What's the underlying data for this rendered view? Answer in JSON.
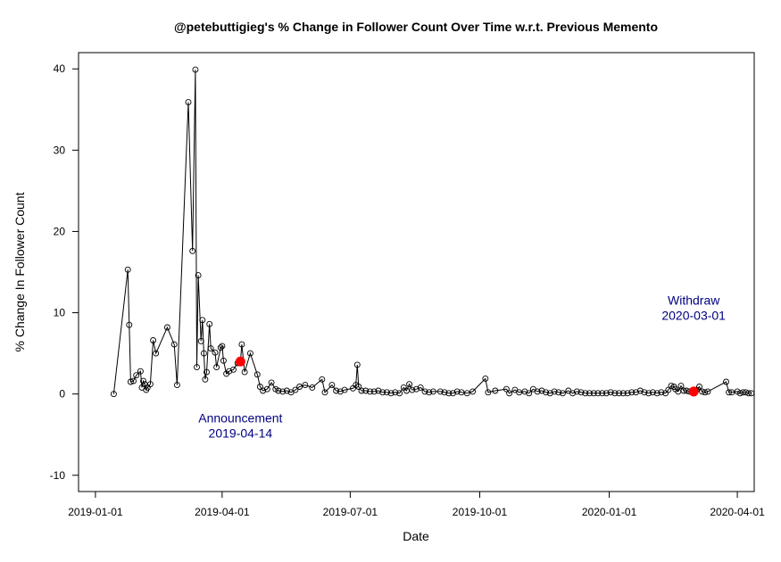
{
  "chart_data": {
    "type": "line",
    "title": "@petebuttigieg's % Change in Follower Count Over Time w.r.t. Previous Memento",
    "xlabel": "Date",
    "ylabel": "% Change In Follower Count",
    "ylim": [
      -12,
      42
    ],
    "xlim": [
      "2018-12-20",
      "2020-04-13"
    ],
    "x_ticks": [
      "2019-01-01",
      "2019-04-01",
      "2019-07-01",
      "2019-10-01",
      "2020-01-01",
      "2020-04-01"
    ],
    "y_ticks": [
      -10,
      0,
      10,
      20,
      30,
      40
    ],
    "grid": false,
    "line_color": "#000000",
    "highlight_color": "#ff0000",
    "annotation_color": "#000080",
    "series": [
      {
        "points": [
          [
            "2019-01-14",
            0
          ],
          [
            "2019-01-24",
            15.3
          ],
          [
            "2019-01-25",
            8.5
          ],
          [
            "2019-01-26",
            1.5
          ],
          [
            "2019-01-28",
            1.6
          ],
          [
            "2019-01-30",
            2.3
          ],
          [
            "2019-02-02",
            2.8
          ],
          [
            "2019-02-03",
            0.8
          ],
          [
            "2019-02-04",
            1.6
          ],
          [
            "2019-02-05",
            1.2
          ],
          [
            "2019-02-06",
            0.5
          ],
          [
            "2019-02-07",
            0.8
          ],
          [
            "2019-02-09",
            1.2
          ],
          [
            "2019-02-11",
            6.6
          ],
          [
            "2019-02-13",
            5.0
          ],
          [
            "2019-02-21",
            8.2
          ],
          [
            "2019-02-26",
            6.1
          ],
          [
            "2019-02-28",
            1.1
          ],
          [
            "2019-03-08",
            35.9
          ],
          [
            "2019-03-11",
            17.6
          ],
          [
            "2019-03-13",
            39.9
          ],
          [
            "2019-03-14",
            3.3
          ],
          [
            "2019-03-15",
            14.6
          ],
          [
            "2019-03-17",
            6.5
          ],
          [
            "2019-03-18",
            9.1
          ],
          [
            "2019-03-19",
            5.0
          ],
          [
            "2019-03-20",
            1.8
          ],
          [
            "2019-03-21",
            2.7
          ],
          [
            "2019-03-23",
            8.6
          ],
          [
            "2019-03-24",
            5.6
          ],
          [
            "2019-03-27",
            5.1
          ],
          [
            "2019-03-28",
            3.3
          ],
          [
            "2019-03-31",
            5.7
          ],
          [
            "2019-04-01",
            5.9
          ],
          [
            "2019-04-02",
            4.1
          ],
          [
            "2019-04-04",
            2.5
          ],
          [
            "2019-04-06",
            2.8
          ],
          [
            "2019-04-09",
            3.0
          ],
          [
            "2019-04-12",
            3.8
          ],
          [
            "2019-04-14",
            4.0
          ],
          [
            "2019-04-15",
            6.1
          ],
          [
            "2019-04-17",
            2.7
          ],
          [
            "2019-04-21",
            5.0
          ],
          [
            "2019-04-26",
            2.4
          ],
          [
            "2019-04-28",
            0.9
          ],
          [
            "2019-04-30",
            0.4
          ],
          [
            "2019-05-03",
            0.6
          ],
          [
            "2019-05-06",
            1.4
          ],
          [
            "2019-05-09",
            0.6
          ],
          [
            "2019-05-11",
            0.4
          ],
          [
            "2019-05-14",
            0.3
          ],
          [
            "2019-05-17",
            0.4
          ],
          [
            "2019-05-20",
            0.2
          ],
          [
            "2019-05-23",
            0.5
          ],
          [
            "2019-05-26",
            0.9
          ],
          [
            "2019-05-30",
            1.1
          ],
          [
            "2019-06-04",
            0.8
          ],
          [
            "2019-06-11",
            1.8
          ],
          [
            "2019-06-13",
            0.2
          ],
          [
            "2019-06-18",
            1.1
          ],
          [
            "2019-06-21",
            0.4
          ],
          [
            "2019-06-24",
            0.3
          ],
          [
            "2019-06-27",
            0.5
          ],
          [
            "2019-07-03",
            0.7
          ],
          [
            "2019-07-05",
            1.1
          ],
          [
            "2019-07-06",
            3.6
          ],
          [
            "2019-07-07",
            0.9
          ],
          [
            "2019-07-09",
            0.4
          ],
          [
            "2019-07-12",
            0.4
          ],
          [
            "2019-07-15",
            0.3
          ],
          [
            "2019-07-18",
            0.3
          ],
          [
            "2019-07-21",
            0.4
          ],
          [
            "2019-07-24",
            0.2
          ],
          [
            "2019-07-27",
            0.2
          ],
          [
            "2019-07-30",
            0.1
          ],
          [
            "2019-08-02",
            0.2
          ],
          [
            "2019-08-05",
            0.1
          ],
          [
            "2019-08-08",
            0.8
          ],
          [
            "2019-08-10",
            0.4
          ],
          [
            "2019-08-12",
            1.2
          ],
          [
            "2019-08-14",
            0.5
          ],
          [
            "2019-08-17",
            0.6
          ],
          [
            "2019-08-20",
            0.8
          ],
          [
            "2019-08-23",
            0.3
          ],
          [
            "2019-08-26",
            0.2
          ],
          [
            "2019-08-29",
            0.3
          ],
          [
            "2019-09-03",
            0.3
          ],
          [
            "2019-09-06",
            0.2
          ],
          [
            "2019-09-09",
            0.1
          ],
          [
            "2019-09-12",
            0.1
          ],
          [
            "2019-09-15",
            0.3
          ],
          [
            "2019-09-18",
            0.2
          ],
          [
            "2019-09-22",
            0.1
          ],
          [
            "2019-09-26",
            0.3
          ],
          [
            "2019-10-05",
            1.9
          ],
          [
            "2019-10-07",
            0.2
          ],
          [
            "2019-10-12",
            0.4
          ],
          [
            "2019-10-20",
            0.6
          ],
          [
            "2019-10-22",
            0.1
          ],
          [
            "2019-10-26",
            0.5
          ],
          [
            "2019-10-29",
            0.2
          ],
          [
            "2019-11-02",
            0.3
          ],
          [
            "2019-11-05",
            0.1
          ],
          [
            "2019-11-08",
            0.6
          ],
          [
            "2019-11-11",
            0.3
          ],
          [
            "2019-11-14",
            0.4
          ],
          [
            "2019-11-17",
            0.2
          ],
          [
            "2019-11-20",
            0.1
          ],
          [
            "2019-11-23",
            0.3
          ],
          [
            "2019-11-26",
            0.2
          ],
          [
            "2019-11-29",
            0.1
          ],
          [
            "2019-12-03",
            0.4
          ],
          [
            "2019-12-06",
            0.1
          ],
          [
            "2019-12-09",
            0.3
          ],
          [
            "2019-12-12",
            0.2
          ],
          [
            "2019-12-15",
            0.1
          ],
          [
            "2019-12-18",
            0.1
          ],
          [
            "2019-12-21",
            0.1
          ],
          [
            "2019-12-24",
            0.1
          ],
          [
            "2019-12-27",
            0.1
          ],
          [
            "2019-12-30",
            0.1
          ],
          [
            "2020-01-02",
            0.2
          ],
          [
            "2020-01-05",
            0.1
          ],
          [
            "2020-01-08",
            0.1
          ],
          [
            "2020-01-11",
            0.1
          ],
          [
            "2020-01-14",
            0.1
          ],
          [
            "2020-01-17",
            0.2
          ],
          [
            "2020-01-20",
            0.2
          ],
          [
            "2020-01-23",
            0.4
          ],
          [
            "2020-01-26",
            0.2
          ],
          [
            "2020-01-29",
            0.1
          ],
          [
            "2020-02-01",
            0.2
          ],
          [
            "2020-02-04",
            0.1
          ],
          [
            "2020-02-07",
            0.2
          ],
          [
            "2020-02-10",
            0.1
          ],
          [
            "2020-02-12",
            0.5
          ],
          [
            "2020-02-14",
            1.0
          ],
          [
            "2020-02-16",
            0.9
          ],
          [
            "2020-02-17",
            0.6
          ],
          [
            "2020-02-19",
            0.3
          ],
          [
            "2020-02-21",
            1.0
          ],
          [
            "2020-02-23",
            0.4
          ],
          [
            "2020-02-25",
            0.4
          ],
          [
            "2020-02-27",
            0.3
          ],
          [
            "2020-03-01",
            0.3
          ],
          [
            "2020-03-03",
            0.5
          ],
          [
            "2020-03-05",
            0.9
          ],
          [
            "2020-03-07",
            0.3
          ],
          [
            "2020-03-09",
            0.2
          ],
          [
            "2020-03-11",
            0.3
          ],
          [
            "2020-03-24",
            1.5
          ],
          [
            "2020-03-26",
            0.2
          ],
          [
            "2020-03-28",
            0.2
          ],
          [
            "2020-04-01",
            0.3
          ],
          [
            "2020-04-03",
            0.1
          ],
          [
            "2020-04-05",
            0.2
          ],
          [
            "2020-04-07",
            0.2
          ],
          [
            "2020-04-09",
            0.1
          ],
          [
            "2020-04-11",
            0.1
          ]
        ]
      }
    ],
    "highlights": [
      {
        "date": "2019-04-14",
        "value": 4.0,
        "label_line1": "Announcement",
        "label_line2": "2019-04-14",
        "label_y": -3.5
      },
      {
        "date": "2020-03-01",
        "value": 0.3,
        "label_line1": "Withdraw",
        "label_line2": "2020-03-01",
        "label_y": 11.0
      }
    ]
  }
}
